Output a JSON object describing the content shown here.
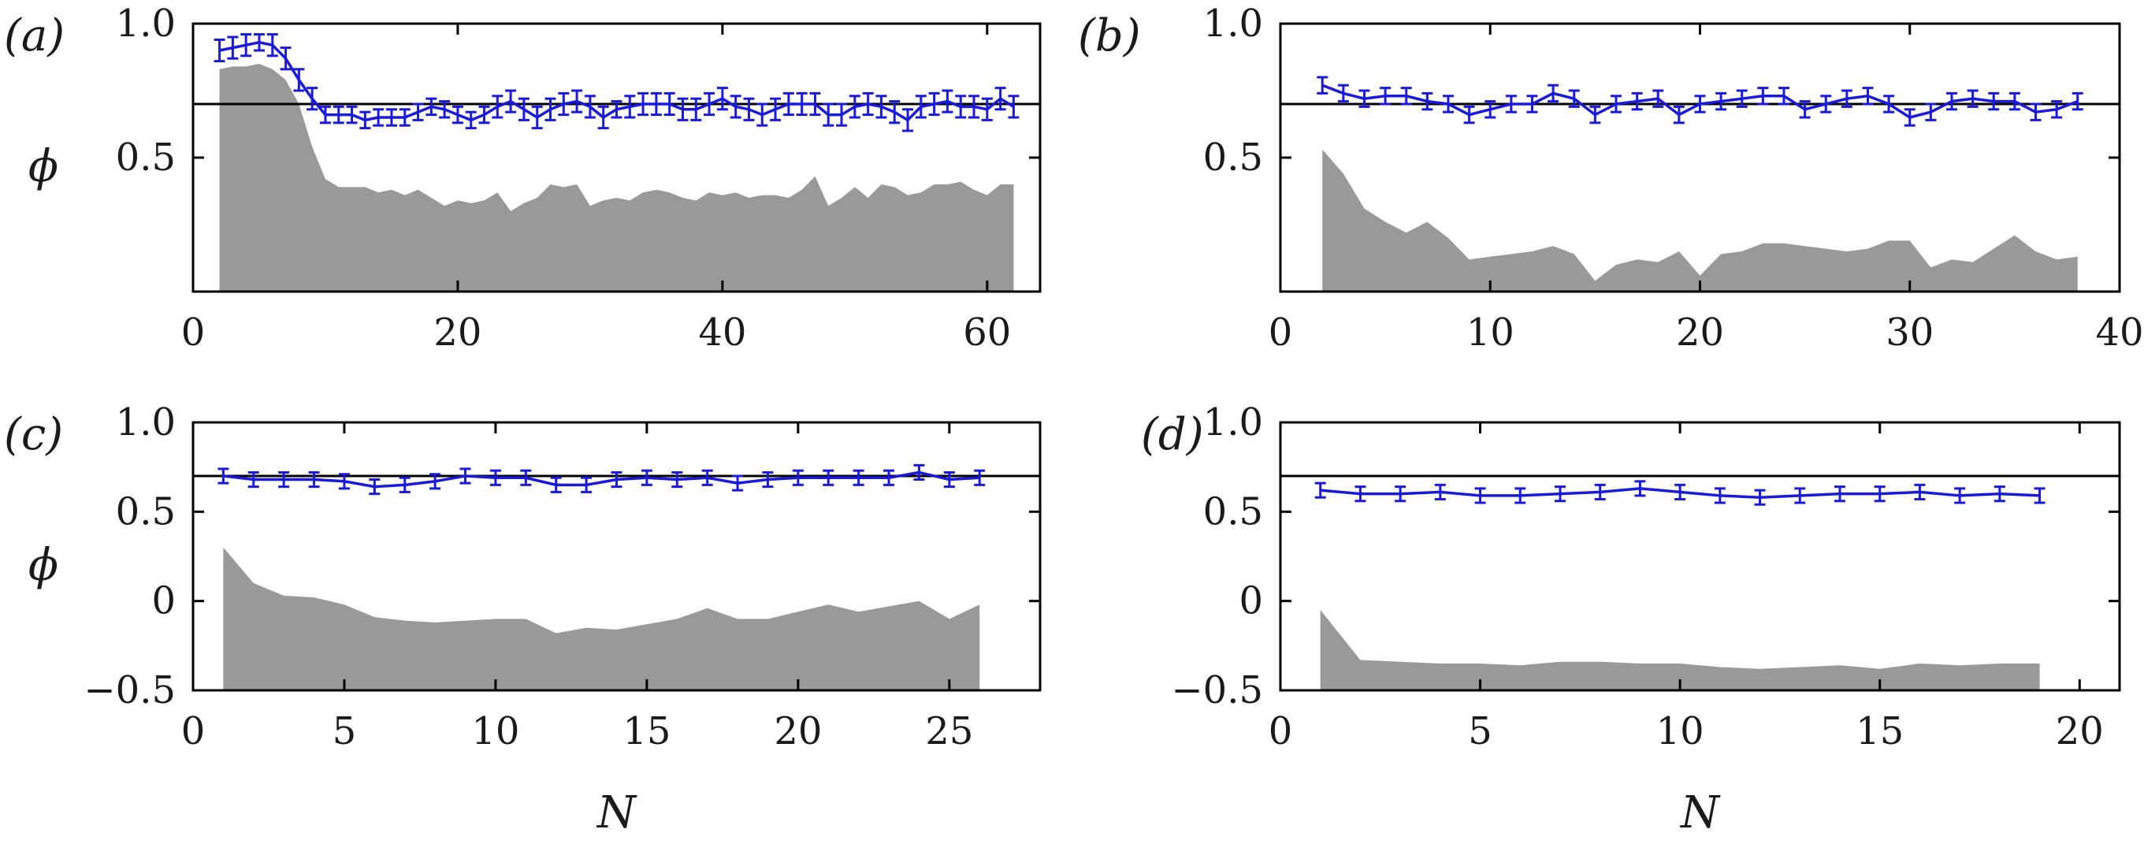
{
  "chart_data": [
    {
      "panel": "(a)",
      "type": "line",
      "xlabel": "",
      "ylabel": "ϕ",
      "xlim": [
        0,
        64
      ],
      "ylim": [
        0.0,
        1.0
      ],
      "xticks": [
        "0",
        "20",
        "40",
        "60"
      ],
      "yticks": [
        "0.5",
        "1.0"
      ],
      "ytick_values": [
        0.5,
        1.0
      ],
      "xtick_values": [
        0,
        20,
        40,
        60
      ],
      "reference_line": 0.7,
      "series": [
        {
          "name": "phi",
          "color": "#1a1adb",
          "x": [
            2,
            3,
            4,
            5,
            6,
            7,
            8,
            9,
            10,
            11,
            12,
            13,
            14,
            15,
            16,
            17,
            18,
            19,
            20,
            21,
            22,
            23,
            24,
            25,
            26,
            27,
            28,
            29,
            30,
            31,
            32,
            33,
            34,
            35,
            36,
            37,
            38,
            39,
            40,
            41,
            42,
            43,
            44,
            45,
            46,
            47,
            48,
            49,
            50,
            51,
            52,
            53,
            54,
            55,
            56,
            57,
            58,
            59,
            60,
            61,
            62
          ],
          "y": [
            0.9,
            0.91,
            0.92,
            0.93,
            0.92,
            0.87,
            0.79,
            0.72,
            0.66,
            0.66,
            0.66,
            0.64,
            0.65,
            0.65,
            0.65,
            0.67,
            0.69,
            0.68,
            0.66,
            0.64,
            0.66,
            0.69,
            0.71,
            0.68,
            0.65,
            0.68,
            0.7,
            0.71,
            0.69,
            0.65,
            0.68,
            0.69,
            0.7,
            0.7,
            0.7,
            0.68,
            0.68,
            0.7,
            0.72,
            0.69,
            0.68,
            0.66,
            0.68,
            0.7,
            0.7,
            0.7,
            0.66,
            0.66,
            0.69,
            0.7,
            0.69,
            0.67,
            0.64,
            0.69,
            0.7,
            0.71,
            0.69,
            0.69,
            0.68,
            0.72,
            0.69
          ],
          "err": [
            0.04,
            0.04,
            0.04,
            0.03,
            0.04,
            0.04,
            0.04,
            0.04,
            0.03,
            0.03,
            0.03,
            0.03,
            0.03,
            0.03,
            0.03,
            0.03,
            0.03,
            0.03,
            0.03,
            0.03,
            0.03,
            0.04,
            0.04,
            0.04,
            0.04,
            0.04,
            0.04,
            0.04,
            0.04,
            0.04,
            0.03,
            0.04,
            0.04,
            0.04,
            0.04,
            0.04,
            0.04,
            0.04,
            0.04,
            0.04,
            0.04,
            0.04,
            0.04,
            0.04,
            0.04,
            0.04,
            0.04,
            0.04,
            0.04,
            0.04,
            0.04,
            0.04,
            0.04,
            0.04,
            0.04,
            0.04,
            0.04,
            0.04,
            0.04,
            0.04,
            0.04
          ]
        },
        {
          "name": "distribution",
          "type": "area",
          "color": "#999999",
          "x": [
            2,
            3,
            4,
            5,
            6,
            7,
            8,
            9,
            10,
            11,
            12,
            13,
            14,
            15,
            16,
            17,
            18,
            19,
            20,
            21,
            22,
            23,
            24,
            25,
            26,
            27,
            28,
            29,
            30,
            31,
            32,
            33,
            34,
            35,
            36,
            37,
            38,
            39,
            40,
            41,
            42,
            43,
            44,
            45,
            46,
            47,
            48,
            49,
            50,
            51,
            52,
            53,
            54,
            55,
            56,
            57,
            58,
            59,
            60,
            61,
            62
          ],
          "y": [
            0.83,
            0.84,
            0.84,
            0.85,
            0.83,
            0.79,
            0.7,
            0.54,
            0.42,
            0.39,
            0.39,
            0.39,
            0.37,
            0.38,
            0.36,
            0.38,
            0.35,
            0.32,
            0.34,
            0.33,
            0.34,
            0.37,
            0.3,
            0.33,
            0.35,
            0.4,
            0.39,
            0.4,
            0.32,
            0.34,
            0.35,
            0.34,
            0.37,
            0.38,
            0.37,
            0.35,
            0.34,
            0.37,
            0.36,
            0.37,
            0.35,
            0.36,
            0.36,
            0.35,
            0.38,
            0.43,
            0.32,
            0.35,
            0.39,
            0.35,
            0.4,
            0.39,
            0.36,
            0.37,
            0.4,
            0.4,
            0.41,
            0.38,
            0.36,
            0.4,
            0.4
          ]
        }
      ]
    },
    {
      "panel": "(b)",
      "type": "line",
      "xlabel": "",
      "ylabel": "",
      "xlim": [
        0,
        40
      ],
      "ylim": [
        0.0,
        1.0
      ],
      "xticks": [
        "0",
        "10",
        "20",
        "30",
        "40"
      ],
      "xtick_values": [
        0,
        10,
        20,
        30,
        40
      ],
      "yticks": [
        "0.5",
        "1.0"
      ],
      "ytick_values": [
        0.5,
        1.0
      ],
      "reference_line": 0.7,
      "series": [
        {
          "name": "phi",
          "color": "#1a1adb",
          "x": [
            2,
            3,
            4,
            5,
            6,
            7,
            8,
            9,
            10,
            11,
            12,
            13,
            14,
            15,
            16,
            17,
            18,
            19,
            20,
            21,
            22,
            23,
            24,
            25,
            26,
            27,
            28,
            29,
            30,
            31,
            32,
            33,
            34,
            35,
            36,
            37,
            38
          ],
          "y": [
            0.77,
            0.74,
            0.72,
            0.73,
            0.73,
            0.71,
            0.7,
            0.66,
            0.68,
            0.7,
            0.7,
            0.74,
            0.72,
            0.66,
            0.7,
            0.71,
            0.72,
            0.66,
            0.7,
            0.71,
            0.72,
            0.73,
            0.73,
            0.68,
            0.7,
            0.72,
            0.73,
            0.7,
            0.65,
            0.67,
            0.71,
            0.72,
            0.71,
            0.71,
            0.67,
            0.68,
            0.71
          ],
          "err": [
            0.03,
            0.03,
            0.03,
            0.03,
            0.03,
            0.03,
            0.03,
            0.03,
            0.03,
            0.03,
            0.03,
            0.03,
            0.03,
            0.03,
            0.03,
            0.03,
            0.03,
            0.03,
            0.03,
            0.03,
            0.03,
            0.03,
            0.03,
            0.03,
            0.03,
            0.03,
            0.03,
            0.03,
            0.03,
            0.03,
            0.03,
            0.03,
            0.03,
            0.03,
            0.03,
            0.03,
            0.03
          ]
        },
        {
          "name": "distribution",
          "type": "area",
          "color": "#999999",
          "x": [
            2,
            3,
            4,
            5,
            6,
            7,
            8,
            9,
            10,
            11,
            12,
            13,
            14,
            15,
            16,
            17,
            18,
            19,
            20,
            21,
            22,
            23,
            24,
            25,
            26,
            27,
            28,
            29,
            30,
            31,
            32,
            33,
            34,
            35,
            36,
            37,
            38
          ],
          "y": [
            0.53,
            0.44,
            0.31,
            0.26,
            0.22,
            0.26,
            0.2,
            0.12,
            0.13,
            0.14,
            0.15,
            0.17,
            0.14,
            0.04,
            0.1,
            0.12,
            0.11,
            0.15,
            0.06,
            0.14,
            0.15,
            0.18,
            0.18,
            0.17,
            0.16,
            0.15,
            0.16,
            0.19,
            0.19,
            0.09,
            0.12,
            0.11,
            0.16,
            0.21,
            0.15,
            0.12,
            0.13
          ]
        }
      ]
    },
    {
      "panel": "(c)",
      "type": "line",
      "xlabel": "N",
      "ylabel": "ϕ",
      "xlim": [
        0,
        28
      ],
      "ylim": [
        -0.5,
        1.0
      ],
      "xticks": [
        "0",
        "5",
        "10",
        "15",
        "20",
        "25"
      ],
      "xtick_values": [
        0,
        5,
        10,
        15,
        20,
        25
      ],
      "yticks": [
        "−0.5",
        "0",
        "0.5",
        "1.0"
      ],
      "ytick_values": [
        -0.5,
        0,
        0.5,
        1.0
      ],
      "reference_line": 0.7,
      "series": [
        {
          "name": "phi",
          "color": "#1a1adb",
          "x": [
            1,
            2,
            3,
            4,
            5,
            6,
            7,
            8,
            9,
            10,
            11,
            12,
            13,
            14,
            15,
            16,
            17,
            18,
            19,
            20,
            21,
            22,
            23,
            24,
            25,
            26
          ],
          "y": [
            0.7,
            0.68,
            0.68,
            0.68,
            0.67,
            0.64,
            0.65,
            0.67,
            0.7,
            0.69,
            0.69,
            0.65,
            0.65,
            0.68,
            0.69,
            0.68,
            0.69,
            0.66,
            0.68,
            0.69,
            0.69,
            0.69,
            0.69,
            0.72,
            0.68,
            0.69
          ],
          "err": [
            0.04,
            0.04,
            0.04,
            0.04,
            0.04,
            0.04,
            0.04,
            0.04,
            0.04,
            0.04,
            0.04,
            0.04,
            0.04,
            0.04,
            0.04,
            0.04,
            0.04,
            0.04,
            0.04,
            0.04,
            0.04,
            0.04,
            0.04,
            0.04,
            0.04,
            0.04
          ]
        },
        {
          "name": "distribution",
          "type": "area",
          "color": "#999999",
          "x": [
            1,
            2,
            3,
            4,
            5,
            6,
            7,
            8,
            9,
            10,
            11,
            12,
            13,
            14,
            15,
            16,
            17,
            18,
            19,
            20,
            21,
            22,
            23,
            24,
            25,
            26
          ],
          "y": [
            0.3,
            0.1,
            0.03,
            0.02,
            -0.02,
            -0.09,
            -0.11,
            -0.12,
            -0.11,
            -0.1,
            -0.1,
            -0.18,
            -0.15,
            -0.16,
            -0.13,
            -0.1,
            -0.04,
            -0.1,
            -0.1,
            -0.06,
            -0.02,
            -0.06,
            -0.03,
            0.0,
            -0.1,
            -0.02
          ]
        }
      ]
    },
    {
      "panel": "(d)",
      "type": "line",
      "xlabel": "N",
      "ylabel": "",
      "xlim": [
        0,
        21
      ],
      "ylim": [
        -0.5,
        1.0
      ],
      "xticks": [
        "0",
        "5",
        "10",
        "15",
        "20"
      ],
      "xtick_values": [
        0,
        5,
        10,
        15,
        20
      ],
      "yticks": [
        "−0.5",
        "0",
        "0.5",
        "1.0"
      ],
      "ytick_values": [
        -0.5,
        0,
        0.5,
        1.0
      ],
      "reference_line": 0.7,
      "series": [
        {
          "name": "phi",
          "color": "#1a1adb",
          "x": [
            1,
            2,
            3,
            4,
            5,
            6,
            7,
            8,
            9,
            10,
            11,
            12,
            13,
            14,
            15,
            16,
            17,
            18,
            19
          ],
          "y": [
            0.62,
            0.6,
            0.6,
            0.61,
            0.59,
            0.59,
            0.6,
            0.61,
            0.63,
            0.61,
            0.59,
            0.58,
            0.59,
            0.6,
            0.6,
            0.61,
            0.59,
            0.6,
            0.59
          ],
          "err": [
            0.04,
            0.04,
            0.04,
            0.04,
            0.04,
            0.04,
            0.04,
            0.04,
            0.04,
            0.04,
            0.04,
            0.04,
            0.04,
            0.04,
            0.04,
            0.04,
            0.04,
            0.04,
            0.04
          ]
        },
        {
          "name": "distribution",
          "type": "area",
          "color": "#999999",
          "x": [
            1,
            2,
            3,
            4,
            5,
            6,
            7,
            8,
            9,
            10,
            11,
            12,
            13,
            14,
            15,
            16,
            17,
            18,
            19
          ],
          "y": [
            -0.05,
            -0.33,
            -0.34,
            -0.35,
            -0.35,
            -0.36,
            -0.34,
            -0.34,
            -0.35,
            -0.35,
            -0.37,
            -0.38,
            -0.37,
            -0.36,
            -0.38,
            -0.35,
            -0.36,
            -0.35,
            -0.35
          ]
        }
      ]
    }
  ]
}
